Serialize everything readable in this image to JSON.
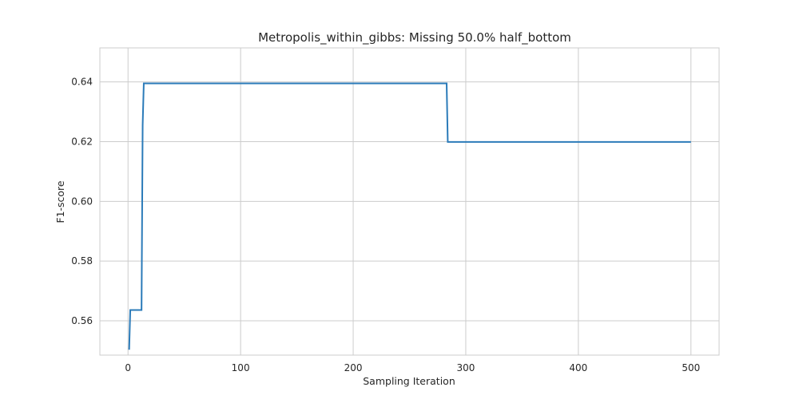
{
  "chart_data": {
    "type": "line",
    "title": "Metropolis_within_gibbs: Missing 50.0% half_bottom",
    "xlabel": "Sampling Iteration",
    "ylabel": "F1-score",
    "xlim": [
      -25,
      525
    ],
    "ylim": [
      0.5485,
      0.6514
    ],
    "xticks": [
      0,
      100,
      200,
      300,
      400,
      500
    ],
    "yticks": [
      0.56,
      0.58,
      0.6,
      0.62,
      0.64
    ],
    "xtick_labels": [
      "0",
      "100",
      "200",
      "300",
      "400",
      "500"
    ],
    "ytick_labels": [
      "0.56",
      "0.58",
      "0.60",
      "0.62",
      "0.64"
    ],
    "grid": true,
    "legend": "none",
    "colors": {
      "series": "#2b7bb9",
      "grid": "#cccccc",
      "text": "#262626"
    },
    "series": [
      {
        "x": [
          1,
          2,
          12,
          13,
          14,
          283,
          284,
          500
        ],
        "y": [
          0.5503,
          0.5636,
          0.5636,
          0.6255,
          0.6395,
          0.6395,
          0.6199,
          0.6199
        ]
      }
    ]
  }
}
